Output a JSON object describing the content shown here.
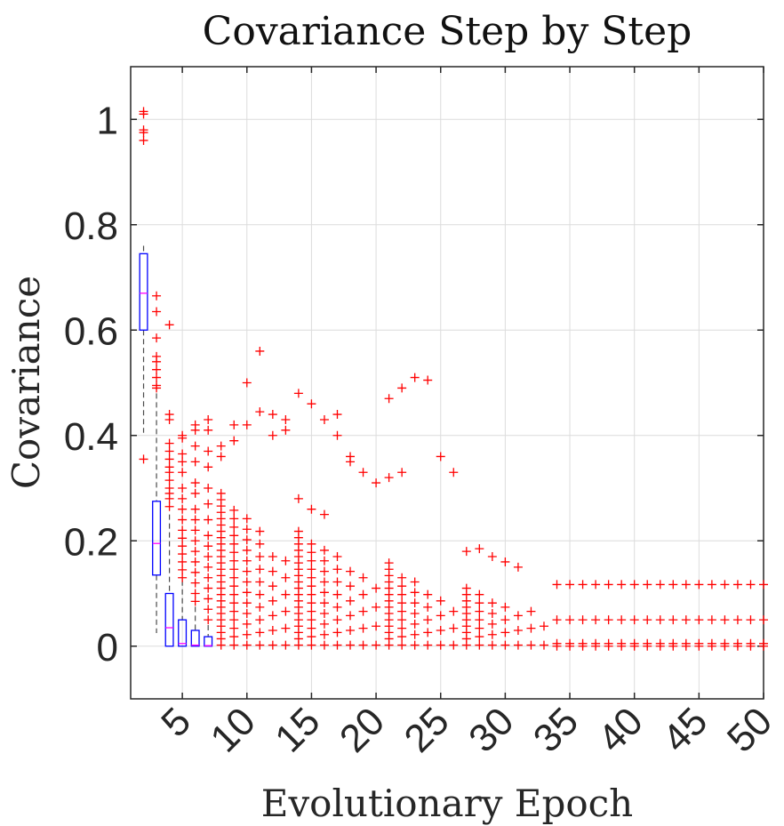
{
  "chart_data": {
    "type": "box",
    "title": "Covariance Step by Step",
    "xlabel": "Evolutionary Epoch",
    "ylabel": "Covariance",
    "xlim": [
      1,
      50
    ],
    "ylim": [
      -0.1,
      1.1
    ],
    "xticks": [
      5,
      10,
      15,
      20,
      25,
      30,
      35,
      40,
      45,
      50
    ],
    "yticks": [
      0,
      0.2,
      0.4,
      0.6,
      0.8,
      1
    ],
    "ytick_labels": [
      "0",
      "0.2",
      "0.4",
      "0.6",
      "0.8",
      "1"
    ],
    "grid": true,
    "box_color": "#0000ff",
    "median_color": "#ff00ff",
    "whisker_color": "#000000",
    "outlier_color": "#ff0000",
    "boxes": [
      {
        "epoch": 2,
        "q1": 0.6,
        "median": 0.67,
        "q3": 0.745,
        "whisker_low": 0.405,
        "whisker_high": 0.76,
        "outliers": [
          0.355,
          0.96,
          0.975,
          0.98,
          1.01,
          1.015
        ]
      },
      {
        "epoch": 3,
        "q1": 0.135,
        "median": 0.195,
        "q3": 0.275,
        "whisker_low": 0.025,
        "whisker_high": 0.48,
        "outliers": [
          0.49,
          0.495,
          0.51,
          0.525,
          0.54,
          0.55,
          0.585,
          0.635,
          0.665
        ]
      },
      {
        "epoch": 4,
        "q1": 0.0,
        "median": 0.035,
        "q3": 0.1,
        "whisker_low": 0.0,
        "whisker_high": 0.25,
        "outliers": [
          0.265,
          0.28,
          0.29,
          0.3,
          0.315,
          0.33,
          0.34,
          0.355,
          0.37,
          0.385,
          0.43,
          0.44,
          0.61
        ]
      },
      {
        "epoch": 5,
        "q1": 0.0,
        "median": 0.005,
        "q3": 0.05,
        "whisker_low": 0.0,
        "whisker_high": 0.125,
        "outliers": [
          0.13,
          0.145,
          0.16,
          0.175,
          0.19,
          0.205,
          0.22,
          0.24,
          0.26,
          0.28,
          0.3,
          0.33,
          0.35,
          0.365,
          0.395,
          0.4
        ]
      },
      {
        "epoch": 6,
        "q1": 0.0,
        "median": 0.002,
        "q3": 0.03,
        "whisker_low": 0.0,
        "whisker_high": 0.075,
        "outliers": [
          0.085,
          0.1,
          0.12,
          0.14,
          0.16,
          0.18,
          0.2,
          0.22,
          0.24,
          0.26,
          0.29,
          0.31,
          0.35,
          0.38,
          0.41,
          0.42
        ]
      },
      {
        "epoch": 7,
        "q1": 0.0,
        "median": 0.001,
        "q3": 0.018,
        "whisker_low": 0.0,
        "whisker_high": 0.04,
        "outliers": [
          0.05,
          0.07,
          0.09,
          0.11,
          0.13,
          0.15,
          0.17,
          0.19,
          0.21,
          0.24,
          0.27,
          0.3,
          0.34,
          0.37,
          0.41,
          0.43
        ]
      }
    ],
    "outlier_clusters": [
      {
        "from_epoch": 8,
        "to_epoch": 13,
        "max": 0.3,
        "extra": [
          0.36,
          0.39,
          0.42,
          0.445,
          0.4,
          0.43,
          0.38,
          0.42,
          0.5,
          0.56,
          0.44,
          0.41
        ]
      },
      {
        "from_epoch": 14,
        "to_epoch": 20,
        "max": 0.22,
        "extra": [
          0.48,
          0.46,
          0.43,
          0.4,
          0.36,
          0.33,
          0.31,
          0.28,
          0.26,
          0.25,
          0.44,
          0.35
        ]
      },
      {
        "from_epoch": 21,
        "to_epoch": 26,
        "max": 0.16,
        "extra": [
          0.47,
          0.49,
          0.51,
          0.505,
          0.36,
          0.33,
          0.32,
          0.33
        ]
      },
      {
        "from_epoch": 27,
        "to_epoch": 33,
        "max": 0.12,
        "extra": [
          0.18,
          0.185,
          0.17,
          0.16,
          0.15
        ]
      }
    ],
    "constant_series": [
      {
        "from_epoch": 34,
        "to_epoch": 50,
        "values": [
          0.0,
          0.005,
          0.05,
          0.117
        ]
      }
    ]
  }
}
